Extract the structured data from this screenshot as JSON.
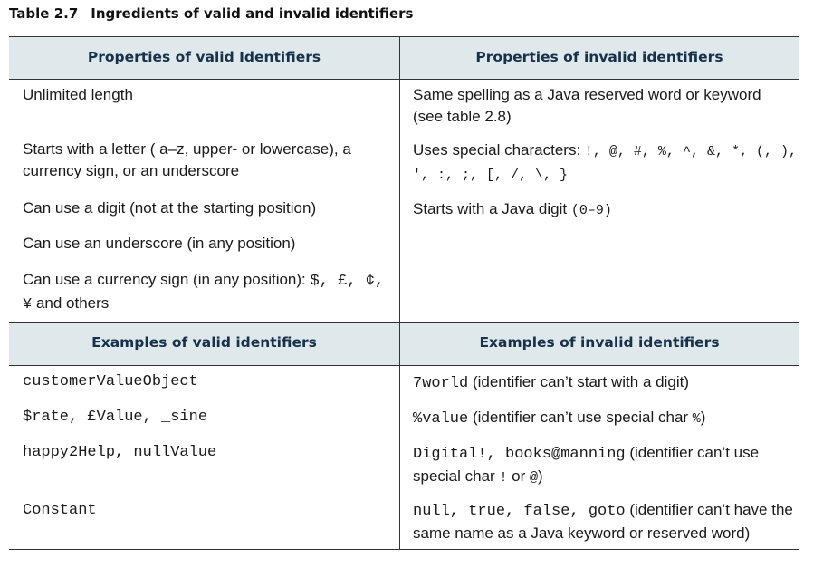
{
  "caption": {
    "number": "Table 2.7",
    "title": "Ingredients of valid and invalid identifiers"
  },
  "headers": {
    "valid_properties": "Properties of valid Identifiers",
    "invalid_properties": "Properties of invalid identifiers",
    "valid_examples": "Examples of valid identifiers",
    "invalid_examples": "Examples of invalid identifiers"
  },
  "valid_properties": [
    "Unlimited length",
    "Starts with a letter ( a–z, upper- or lowercase), a currency sign, or an underscore",
    "Can use a digit (not at the starting position)",
    "Can use an underscore (in any position)",
    "Can use a currency sign (in any position):",
    "$, £, ¢,",
    "¥",
    "and others"
  ],
  "invalid_properties": [
    "Same spelling as a Java reserved word or keyword (see table 2.8)",
    "Uses special characters:",
    "!, @, #, %, ^, &, *, (, ),",
    "', :, ;, [, /, \\, }",
    "Starts with a Java digit",
    "(0–9)"
  ],
  "valid_examples": [
    "customerValueObject",
    "$rate, £Value, _sine",
    "happy2Help, nullValue",
    "Constant"
  ],
  "invalid_examples": [
    {
      "code": "7world",
      "text": " (identifier can’t start with a digit)"
    },
    {
      "code": "%value",
      "text": " (identifier can’t use special char ",
      "code2": "%",
      "text2": ")"
    },
    {
      "code": "Digital!, books@manning",
      "text": " (identifier can’t use special char ",
      "code2": "!",
      "text2": " or ",
      "code3": "@",
      "text3": ")"
    },
    {
      "code": "null, true, false, goto",
      "text": " (identifier can’t have the same name as a Java keyword or reserved word)"
    }
  ]
}
